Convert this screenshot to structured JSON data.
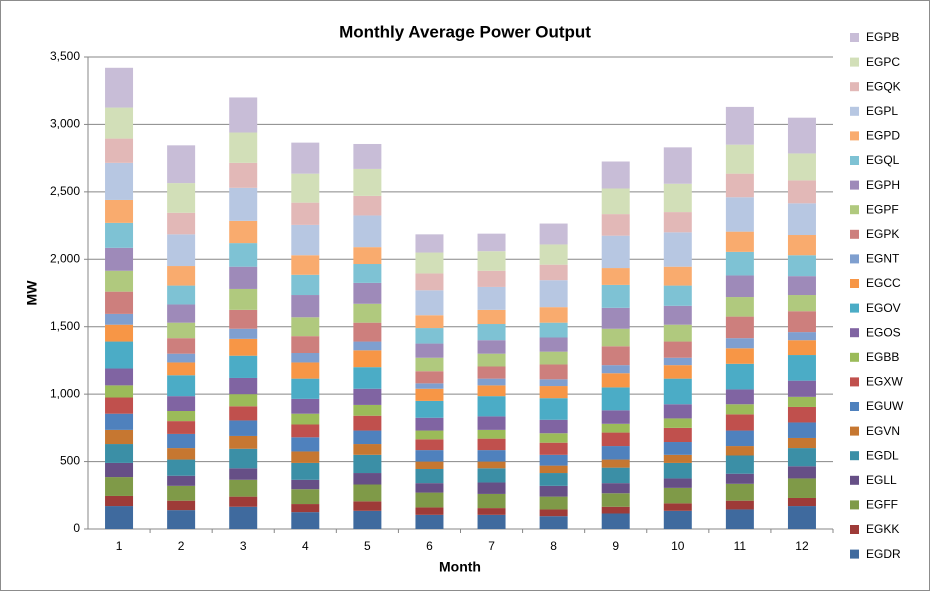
{
  "chart_data": {
    "type": "stacked_bar",
    "title": "Monthly Average Power Output",
    "x_label": "Month",
    "y_label": "MW",
    "categories": [
      "1",
      "2",
      "3",
      "4",
      "5",
      "6",
      "7",
      "8",
      "9",
      "10",
      "11",
      "12"
    ],
    "ylim": [
      0,
      3500
    ],
    "yticks": [
      0,
      500,
      {
        "value": 1000,
        "label": "1,000"
      },
      {
        "value": 1500,
        "label": "1,500"
      },
      {
        "value": 2000,
        "label": "2,000"
      },
      {
        "value": 2500,
        "label": "2,500"
      },
      {
        "value": 3000,
        "label": "3,000"
      },
      {
        "value": 3500,
        "label": "3,500"
      }
    ],
    "grid": true,
    "legend": "right",
    "series": [
      {
        "name": "EGDR",
        "color": "#3F6A9E",
        "values": [
          170,
          140,
          165,
          125,
          135,
          105,
          105,
          95,
          115,
          135,
          145,
          170
        ]
      },
      {
        "name": "EGKK",
        "color": "#9E3B38",
        "values": [
          75,
          70,
          75,
          60,
          70,
          55,
          50,
          50,
          50,
          55,
          65,
          60
        ]
      },
      {
        "name": "EGFF",
        "color": "#7F9A48",
        "values": [
          140,
          110,
          125,
          110,
          125,
          110,
          105,
          95,
          100,
          115,
          125,
          145
        ]
      },
      {
        "name": "EGLL",
        "color": "#664F86",
        "values": [
          105,
          75,
          85,
          70,
          85,
          70,
          85,
          80,
          75,
          70,
          75,
          90
        ]
      },
      {
        "name": "EGDL",
        "color": "#3B8FA6",
        "values": [
          140,
          120,
          145,
          125,
          135,
          105,
          105,
          95,
          115,
          115,
          135,
          135
        ]
      },
      {
        "name": "EGVN",
        "color": "#C67731",
        "values": [
          105,
          85,
          95,
          85,
          80,
          55,
          50,
          55,
          60,
          60,
          70,
          75
        ]
      },
      {
        "name": "EGUW",
        "color": "#4F81BD",
        "values": [
          120,
          105,
          115,
          105,
          100,
          85,
          85,
          80,
          100,
          95,
          115,
          115
        ]
      },
      {
        "name": "EGXW",
        "color": "#C0504D",
        "values": [
          120,
          95,
          105,
          95,
          110,
          80,
          85,
          90,
          100,
          105,
          120,
          115
        ]
      },
      {
        "name": "EGBB",
        "color": "#9BBB59",
        "values": [
          90,
          75,
          90,
          80,
          80,
          65,
          65,
          70,
          65,
          70,
          75,
          75
        ]
      },
      {
        "name": "EGOS",
        "color": "#8064A2",
        "values": [
          125,
          110,
          120,
          110,
          120,
          95,
          100,
          100,
          100,
          105,
          110,
          120
        ]
      },
      {
        "name": "EGOV",
        "color": "#4BACC6",
        "values": [
          200,
          155,
          165,
          150,
          160,
          125,
          150,
          160,
          170,
          190,
          190,
          190
        ]
      },
      {
        "name": "EGCC",
        "color": "#F79646",
        "values": [
          125,
          95,
          125,
          120,
          125,
          90,
          80,
          90,
          105,
          100,
          115,
          110
        ]
      },
      {
        "name": "EGNT",
        "color": "#7F9FCF",
        "values": [
          80,
          65,
          75,
          70,
          65,
          40,
          50,
          50,
          60,
          55,
          75,
          60
        ]
      },
      {
        "name": "EGPK",
        "color": "#CD7F7D",
        "values": [
          165,
          115,
          140,
          125,
          140,
          90,
          90,
          110,
          140,
          120,
          160,
          155
        ]
      },
      {
        "name": "EGPF",
        "color": "#B0C97E",
        "values": [
          155,
          115,
          155,
          140,
          140,
          100,
          95,
          95,
          130,
          125,
          145,
          120
        ]
      },
      {
        "name": "EGPH",
        "color": "#9E8AB9",
        "values": [
          170,
          135,
          165,
          165,
          155,
          105,
          100,
          105,
          155,
          140,
          160,
          140
        ]
      },
      {
        "name": "EGQL",
        "color": "#7EC2D4",
        "values": [
          185,
          140,
          175,
          150,
          140,
          115,
          120,
          110,
          170,
          150,
          175,
          155
        ]
      },
      {
        "name": "EGPD",
        "color": "#F9AB6E",
        "values": [
          170,
          145,
          165,
          145,
          125,
          95,
          105,
          115,
          125,
          140,
          150,
          150
        ]
      },
      {
        "name": "EGPL",
        "color": "#B7C7E2",
        "values": [
          275,
          235,
          245,
          225,
          235,
          185,
          170,
          200,
          240,
          255,
          255,
          235
        ]
      },
      {
        "name": "EGQK",
        "color": "#E2B8B7",
        "values": [
          180,
          160,
          185,
          165,
          145,
          125,
          120,
          115,
          160,
          150,
          175,
          170
        ]
      },
      {
        "name": "EGPC",
        "color": "#D2DFB8",
        "values": [
          230,
          220,
          225,
          215,
          200,
          155,
          145,
          150,
          190,
          210,
          215,
          200
        ]
      },
      {
        "name": "EGPB",
        "color": "#C8BDD7",
        "values": [
          295,
          280,
          260,
          230,
          185,
          135,
          130,
          155,
          200,
          270,
          280,
          265
        ]
      }
    ]
  }
}
